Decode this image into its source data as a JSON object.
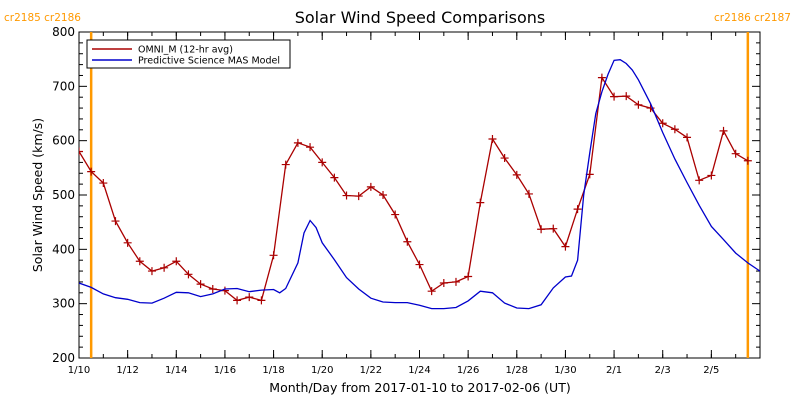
{
  "chart_data": {
    "type": "line",
    "title": "Solar Wind Speed Comparisons",
    "xlabel": "Month/Day from 2017-01-10 to 2017-02-06 (UT)",
    "ylabel": "Solar Wind Speed (km/s)",
    "xlim": [
      "2017-01-10",
      "2017-02-06"
    ],
    "ylim": [
      200,
      800
    ],
    "x_ticks": [
      {
        "date": "2017-01-10",
        "label": "1/10"
      },
      {
        "date": "2017-01-12",
        "label": "1/12"
      },
      {
        "date": "2017-01-14",
        "label": "1/14"
      },
      {
        "date": "2017-01-16",
        "label": "1/16"
      },
      {
        "date": "2017-01-18",
        "label": "1/18"
      },
      {
        "date": "2017-01-20",
        "label": "1/20"
      },
      {
        "date": "2017-01-22",
        "label": "1/22"
      },
      {
        "date": "2017-01-24",
        "label": "1/24"
      },
      {
        "date": "2017-01-26",
        "label": "1/26"
      },
      {
        "date": "2017-01-28",
        "label": "1/28"
      },
      {
        "date": "2017-01-30",
        "label": "1/30"
      },
      {
        "date": "2017-02-01",
        "label": "2/1"
      },
      {
        "date": "2017-02-03",
        "label": "2/3"
      },
      {
        "date": "2017-02-05",
        "label": "2/5"
      }
    ],
    "y_ticks": [
      200,
      300,
      400,
      500,
      600,
      700,
      800
    ],
    "legend": {
      "placement": "top-left"
    },
    "carrington_markers": [
      {
        "date": "2017-01-10 12:00",
        "label_left": "cr2185",
        "label_right": "cr2186",
        "color": "#ff9900"
      },
      {
        "date": "2017-02-06 12:00",
        "label_left": "cr2186",
        "label_right": "cr2187",
        "color": "#ff9900"
      }
    ],
    "series": [
      {
        "name": "OMNI_M (12-hr avg)",
        "color": "#aa0000",
        "marker": "plus",
        "points": [
          [
            "2017-01-10 00:00",
            580
          ],
          [
            "2017-01-10 12:00",
            543
          ],
          [
            "2017-01-11 00:00",
            522
          ],
          [
            "2017-01-11 12:00",
            452
          ],
          [
            "2017-01-12 00:00",
            412
          ],
          [
            "2017-01-12 12:00",
            378
          ],
          [
            "2017-01-13 00:00",
            360
          ],
          [
            "2017-01-13 12:00",
            366
          ],
          [
            "2017-01-14 00:00",
            378
          ],
          [
            "2017-01-14 12:00",
            354
          ],
          [
            "2017-01-15 00:00",
            336
          ],
          [
            "2017-01-15 12:00",
            327
          ],
          [
            "2017-01-16 00:00",
            324
          ],
          [
            "2017-01-16 12:00",
            306
          ],
          [
            "2017-01-17 00:00",
            312
          ],
          [
            "2017-01-17 12:00",
            306
          ],
          [
            "2017-01-18 00:00",
            389
          ],
          [
            "2017-01-18 12:00",
            556
          ],
          [
            "2017-01-19 00:00",
            596
          ],
          [
            "2017-01-19 12:00",
            588
          ],
          [
            "2017-01-20 00:00",
            560
          ],
          [
            "2017-01-20 12:00",
            532
          ],
          [
            "2017-01-21 00:00",
            499
          ],
          [
            "2017-01-21 12:00",
            498
          ],
          [
            "2017-01-22 00:00",
            515
          ],
          [
            "2017-01-22 12:00",
            500
          ],
          [
            "2017-01-23 00:00",
            464
          ],
          [
            "2017-01-23 12:00",
            414
          ],
          [
            "2017-01-24 00:00",
            372
          ],
          [
            "2017-01-24 12:00",
            323
          ],
          [
            "2017-01-25 00:00",
            338
          ],
          [
            "2017-01-25 12:00",
            340
          ],
          [
            "2017-01-26 00:00",
            350
          ],
          [
            "2017-01-26 12:00",
            486
          ],
          [
            "2017-01-27 00:00",
            603
          ],
          [
            "2017-01-27 12:00",
            568
          ],
          [
            "2017-01-28 00:00",
            537
          ],
          [
            "2017-01-28 12:00",
            502
          ],
          [
            "2017-01-29 00:00",
            437
          ],
          [
            "2017-01-29 12:00",
            438
          ],
          [
            "2017-01-30 00:00",
            405
          ],
          [
            "2017-01-30 12:00",
            474
          ],
          [
            "2017-01-31 00:00",
            538
          ],
          [
            "2017-01-31 12:00",
            716
          ],
          [
            "2017-02-01 00:00",
            681
          ],
          [
            "2017-02-01 12:00",
            682
          ],
          [
            "2017-02-02 00:00",
            666
          ],
          [
            "2017-02-02 12:00",
            660
          ],
          [
            "2017-02-03 00:00",
            632
          ],
          [
            "2017-02-03 12:00",
            621
          ],
          [
            "2017-02-04 00:00",
            606
          ],
          [
            "2017-02-04 12:00",
            527
          ],
          [
            "2017-02-05 00:00",
            536
          ],
          [
            "2017-02-05 12:00",
            618
          ],
          [
            "2017-02-06 00:00",
            576
          ],
          [
            "2017-02-06 12:00",
            563
          ]
        ]
      },
      {
        "name": "Predictive Science MAS Model",
        "color": "#0000cc",
        "marker": "none",
        "points": [
          [
            "2017-01-10 00:00",
            338
          ],
          [
            "2017-01-10 12:00",
            330
          ],
          [
            "2017-01-11 00:00",
            318
          ],
          [
            "2017-01-11 12:00",
            311
          ],
          [
            "2017-01-12 00:00",
            308
          ],
          [
            "2017-01-12 12:00",
            302
          ],
          [
            "2017-01-13 00:00",
            301
          ],
          [
            "2017-01-13 12:00",
            310
          ],
          [
            "2017-01-14 00:00",
            321
          ],
          [
            "2017-01-14 12:00",
            320
          ],
          [
            "2017-01-15 00:00",
            313
          ],
          [
            "2017-01-15 12:00",
            318
          ],
          [
            "2017-01-16 00:00",
            327
          ],
          [
            "2017-01-16 12:00",
            328
          ],
          [
            "2017-01-17 00:00",
            322
          ],
          [
            "2017-01-17 12:00",
            325
          ],
          [
            "2017-01-18 00:00",
            326
          ],
          [
            "2017-01-18 06:00",
            320
          ],
          [
            "2017-01-18 12:00",
            328
          ],
          [
            "2017-01-19 00:00",
            375
          ],
          [
            "2017-01-19 06:00",
            430
          ],
          [
            "2017-01-19 12:00",
            453
          ],
          [
            "2017-01-19 18:00",
            440
          ],
          [
            "2017-01-20 00:00",
            412
          ],
          [
            "2017-01-20 12:00",
            381
          ],
          [
            "2017-01-21 00:00",
            348
          ],
          [
            "2017-01-21 12:00",
            327
          ],
          [
            "2017-01-22 00:00",
            310
          ],
          [
            "2017-01-22 12:00",
            303
          ],
          [
            "2017-01-23 00:00",
            302
          ],
          [
            "2017-01-23 12:00",
            302
          ],
          [
            "2017-01-24 00:00",
            297
          ],
          [
            "2017-01-24 12:00",
            291
          ],
          [
            "2017-01-25 00:00",
            291
          ],
          [
            "2017-01-25 12:00",
            293
          ],
          [
            "2017-01-26 00:00",
            305
          ],
          [
            "2017-01-26 12:00",
            323
          ],
          [
            "2017-01-27 00:00",
            320
          ],
          [
            "2017-01-27 12:00",
            301
          ],
          [
            "2017-01-28 00:00",
            292
          ],
          [
            "2017-01-28 12:00",
            291
          ],
          [
            "2017-01-29 00:00",
            298
          ],
          [
            "2017-01-29 12:00",
            329
          ],
          [
            "2017-01-30 00:00",
            349
          ],
          [
            "2017-01-30 06:00",
            351
          ],
          [
            "2017-01-30 12:00",
            380
          ],
          [
            "2017-01-30 18:00",
            500
          ],
          [
            "2017-01-31 00:00",
            578
          ],
          [
            "2017-01-31 06:00",
            650
          ],
          [
            "2017-01-31 12:00",
            690
          ],
          [
            "2017-01-31 18:00",
            722
          ],
          [
            "2017-02-01 00:00",
            748
          ],
          [
            "2017-02-01 06:00",
            749
          ],
          [
            "2017-02-01 12:00",
            742
          ],
          [
            "2017-02-01 18:00",
            730
          ],
          [
            "2017-02-02 00:00",
            712
          ],
          [
            "2017-02-02 12:00",
            668
          ],
          [
            "2017-02-03 00:00",
            615
          ],
          [
            "2017-02-03 12:00",
            566
          ],
          [
            "2017-02-04 00:00",
            523
          ],
          [
            "2017-02-04 12:00",
            481
          ],
          [
            "2017-02-05 00:00",
            442
          ],
          [
            "2017-02-05 12:00",
            418
          ],
          [
            "2017-02-06 00:00",
            393
          ],
          [
            "2017-02-06 12:00",
            375
          ],
          [
            "2017-02-07 00:00",
            360
          ]
        ]
      }
    ]
  }
}
